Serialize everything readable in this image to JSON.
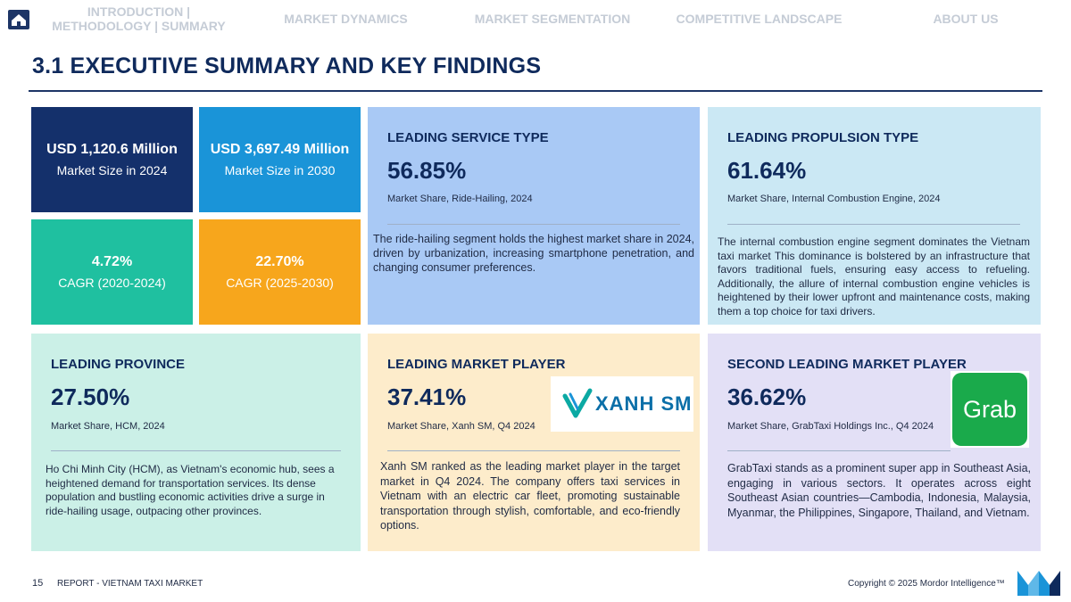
{
  "nav": {
    "items": [
      {
        "line1": "INTRODUCTION |",
        "line2": "METHODOLOGY | SUMMARY"
      },
      {
        "line1": "MARKET DYNAMICS",
        "line2": ""
      },
      {
        "line1": "MARKET SEGMENTATION",
        "line2": ""
      },
      {
        "line1": "COMPETITIVE LANDSCAPE",
        "line2": ""
      },
      {
        "line1": "ABOUT US",
        "line2": ""
      }
    ]
  },
  "page_title": "3.1 EXECUTIVE SUMMARY AND KEY FINDINGS",
  "stats": [
    {
      "value": "USD 1,120.6 Million",
      "label": "Market Size in 2024",
      "color": "#14306b"
    },
    {
      "value": "USD  3,697.49 Million",
      "label": "Market Size in 2030",
      "color": "#1a94d8"
    },
    {
      "value": "4.72%",
      "label": "CAGR (2020-2024)",
      "color": "#1fc0a0"
    },
    {
      "value": "22.70%",
      "label": "CAGR (2025-2030)",
      "color": "#f7a61c"
    }
  ],
  "cards": {
    "service": {
      "title": "LEADING SERVICE TYPE",
      "value": "56.85%",
      "subtitle": "Market Share, Ride-Hailing, 2024",
      "body": "The ride-hailing segment holds the highest market share in 2024, driven by urbanization, increasing smartphone penetration, and changing consumer preferences.",
      "bg": "#a9c9f5"
    },
    "propulsion": {
      "title": "LEADING PROPULSION TYPE",
      "value": "61.64%",
      "subtitle": "Market Share, Internal Combustion Engine, 2024",
      "body": "The internal combustion engine segment dominates the Vietnam taxi market This dominance is bolstered by an infrastructure that favors traditional fuels, ensuring easy access to refueling. Additionally, the allure of internal combustion engine vehicles is heightened by their lower upfront and maintenance costs, making them a top choice for taxi drivers.",
      "bg": "#cbe8f4"
    },
    "province": {
      "title": "LEADING PROVINCE",
      "value": "27.50%",
      "subtitle": "Market Share, HCM, 2024",
      "body": "Ho Chi Minh City (HCM), as Vietnam's economic hub, sees a heightened demand for transportation services. Its dense population and bustling economic activities drive a surge in ride-hailing usage, outpacing other provinces.",
      "bg": "#cbf0e7"
    },
    "player": {
      "title": "LEADING MARKET PLAYER",
      "value": "37.41%",
      "subtitle": "Market Share, Xanh SM, Q4 2024",
      "body": "Xanh SM ranked as the leading market player in the target market in Q4 2024. The company offers taxi services in Vietnam with an electric car fleet, promoting sustainable transportation through stylish, comfortable, and eco-friendly options.",
      "logo_text": "XANH SM",
      "bg": "#fdeccb"
    },
    "second": {
      "title": "SECOND LEADING MARKET PLAYER",
      "value": "36.62%",
      "subtitle": "Market Share, GrabTaxi Holdings Inc., Q4 2024",
      "body": "GrabTaxi stands as a prominent super app in Southeast Asia, engaging in various sectors. It operates across eight Southeast Asian countries—Cambodia, Indonesia, Malaysia, Myanmar, the Philippines, Singapore, Thailand, and Vietnam.",
      "logo_text": "Grab",
      "bg": "#e3e0f6"
    }
  },
  "footer": {
    "page_number": "15",
    "report": "REPORT - VIETNAM TAXI MARKET",
    "copyright": "Copyright © 2025 Mordor Intelligence™"
  },
  "colors": {
    "navy": "#0f2a5c",
    "grab_green": "#1aaa4b",
    "xanh_teal": "#0ba9a3"
  }
}
